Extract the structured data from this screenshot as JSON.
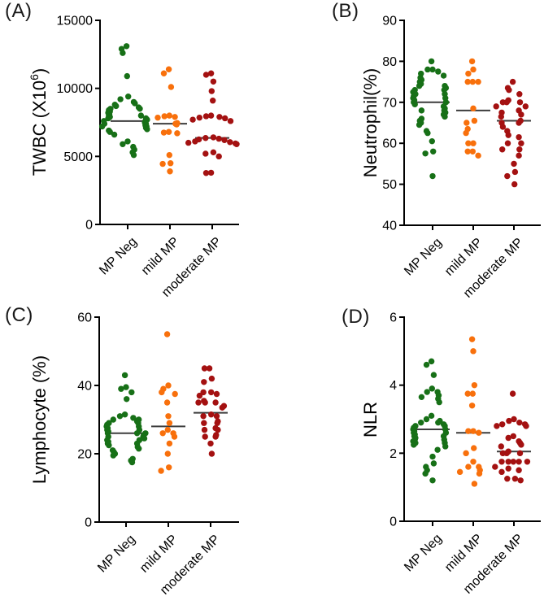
{
  "categories": [
    "MP Neg",
    "mild MP",
    "moderate MP"
  ],
  "colors": {
    "axis": "#000000",
    "median_line": "#3d3d3d",
    "mp_neg": "#177017",
    "mild_mp": "#F8700C",
    "moderate_mp": "#A41111"
  },
  "chart_data": [
    {
      "type": "scatter",
      "panel_label": "(A)",
      "ylabel_main": "TWBC (X10",
      "ylabel_sup": "6",
      "ylabel_post": ")",
      "ylim": [
        0,
        15000
      ],
      "yticks": [
        0,
        5000,
        10000,
        15000
      ],
      "categories": [
        "MP Neg",
        "mild MP",
        "moderate MP"
      ],
      "series": [
        {
          "name": "MP Neg",
          "color": "#177017",
          "median": 7600,
          "values": [
            13100,
            12900,
            12600,
            10900,
            9400,
            9200,
            9000,
            8900,
            8800,
            8700,
            8600,
            8500,
            8500,
            8400,
            8300,
            8200,
            8100,
            8000,
            8000,
            7900,
            7800,
            7800,
            7700,
            7600,
            7600,
            7500,
            7400,
            7400,
            7300,
            7200,
            7200,
            7100,
            7000,
            6900,
            6800,
            6600,
            6100,
            5900,
            5700,
            5500,
            5300,
            5100
          ]
        },
        {
          "name": "mild MP",
          "color": "#F8700C",
          "median": 7400,
          "values": [
            11400,
            11100,
            10100,
            8000,
            7950,
            7900,
            7850,
            7450,
            7400,
            7350,
            6800,
            6750,
            6700,
            5100,
            4500,
            4450,
            3900
          ]
        },
        {
          "name": "moderate MP",
          "color": "#A41111",
          "median": 6360,
          "values": [
            11100,
            11000,
            10500,
            9800,
            9100,
            8000,
            7950,
            7900,
            7850,
            7800,
            7700,
            7600,
            6400,
            6350,
            6300,
            6250,
            6200,
            6100,
            6050,
            6000,
            5950,
            5900,
            5300,
            5200,
            5000,
            3800,
            3780
          ]
        }
      ]
    },
    {
      "type": "scatter",
      "panel_label": "(B)",
      "ylabel_main": "Neutrophil(%)",
      "ylim": [
        40,
        90
      ],
      "yticks": [
        40,
        50,
        60,
        70,
        80,
        90
      ],
      "categories": [
        "MP Neg",
        "mild MP",
        "moderate MP"
      ],
      "series": [
        {
          "name": "MP Neg",
          "color": "#177017",
          "median": 70,
          "values": [
            80,
            78,
            78,
            77.5,
            77,
            76.5,
            76,
            75.5,
            75,
            74.5,
            74,
            74,
            73.5,
            73,
            73,
            72.5,
            72,
            72,
            71.5,
            71,
            71,
            70.5,
            70,
            70,
            69.5,
            69,
            68.5,
            68,
            68,
            67.5,
            67,
            66.5,
            66,
            65.5,
            65,
            64.5,
            63,
            62.5,
            60.5,
            58,
            57.5,
            52
          ]
        },
        {
          "name": "mild MP",
          "color": "#F8700C",
          "median": 68,
          "values": [
            80,
            78,
            77,
            75,
            75,
            75,
            68.5,
            65.5,
            65,
            63.5,
            62.5,
            60,
            60,
            58,
            58,
            57
          ]
        },
        {
          "name": "moderate MP",
          "color": "#A41111",
          "median": 65.5,
          "values": [
            75,
            73.5,
            73,
            72,
            70.5,
            70,
            70,
            70,
            69,
            69,
            68,
            67.5,
            67,
            66.5,
            65.5,
            65,
            65,
            64,
            63,
            62,
            61.5,
            60,
            60,
            58.5,
            58.5,
            57,
            55,
            53,
            52,
            50
          ]
        }
      ]
    },
    {
      "type": "scatter",
      "panel_label": "(C)",
      "ylabel_main": "Lymphocyte (%)",
      "ylim": [
        0,
        60
      ],
      "yticks": [
        0,
        20,
        40,
        60
      ],
      "categories": [
        "MP Neg",
        "mild MP",
        "moderate MP"
      ],
      "series": [
        {
          "name": "MP Neg",
          "color": "#177017",
          "median": 26,
          "values": [
            43,
            39.5,
            39,
            38,
            36,
            31.5,
            31,
            30.5,
            30,
            30,
            29.5,
            29,
            29,
            28.5,
            28,
            28,
            27.5,
            27,
            27,
            26.5,
            26,
            26,
            26,
            25.5,
            25,
            25,
            24.5,
            24,
            24,
            23.5,
            23,
            23,
            22.5,
            22,
            21.5,
            21,
            20.5,
            20,
            19.5,
            18.5,
            18,
            17.5
          ]
        },
        {
          "name": "mild MP",
          "color": "#F8700C",
          "median": 28,
          "values": [
            55,
            40,
            39,
            38,
            37.5,
            35,
            31,
            29,
            27,
            26,
            26,
            25,
            23,
            20,
            16,
            15
          ]
        },
        {
          "name": "moderate MP",
          "color": "#A41111",
          "median": 32,
          "values": [
            45,
            45,
            42,
            41,
            38,
            38,
            37.5,
            37,
            35.5,
            35,
            35,
            35,
            34,
            33.5,
            31.5,
            31,
            31,
            29.5,
            29,
            29,
            27.5,
            27,
            27,
            25.5,
            25,
            25,
            23,
            20
          ]
        }
      ]
    },
    {
      "type": "scatter",
      "panel_label": "(D)",
      "ylabel_main": "NLR",
      "ylim": [
        0,
        6
      ],
      "yticks": [
        0,
        2,
        4,
        6
      ],
      "categories": [
        "MP Neg",
        "mild MP",
        "moderate MP"
      ],
      "series": [
        {
          "name": "MP Neg",
          "color": "#177017",
          "median": 2.7,
          "values": [
            4.7,
            4.6,
            4.3,
            3.9,
            3.8,
            3.8,
            3.7,
            3.65,
            3.6,
            3.5,
            3.1,
            3.0,
            2.95,
            2.9,
            2.9,
            2.85,
            2.8,
            2.8,
            2.75,
            2.7,
            2.7,
            2.65,
            2.6,
            2.6,
            2.55,
            2.5,
            2.5,
            2.45,
            2.4,
            2.4,
            2.35,
            2.3,
            2.3,
            2.25,
            2.2,
            2.1,
            1.9,
            1.7,
            1.6,
            1.5,
            1.4,
            1.2
          ]
        },
        {
          "name": "mild MP",
          "color": "#F8700C",
          "median": 2.6,
          "values": [
            5.35,
            5.0,
            4.0,
            3.75,
            3.75,
            3.4,
            2.65,
            2.65,
            2.6,
            2.15,
            2.0,
            1.75,
            1.6,
            1.6,
            1.5,
            1.45,
            1.4,
            1.1
          ]
        },
        {
          "name": "moderate MP",
          "color": "#A41111",
          "median": 2.05,
          "values": [
            3.75,
            3.0,
            2.95,
            2.9,
            2.85,
            2.85,
            2.8,
            2.8,
            2.5,
            2.45,
            2.35,
            2.3,
            2.25,
            2.2,
            2.05,
            2.0,
            2.0,
            2.0,
            1.75,
            1.75,
            1.75,
            1.75,
            1.75,
            1.6,
            1.55,
            1.5,
            1.45,
            1.25,
            1.25,
            1.2
          ]
        }
      ]
    }
  ]
}
